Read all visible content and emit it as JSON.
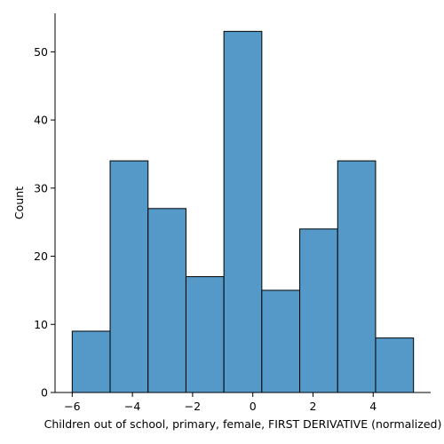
{
  "chart_data": {
    "type": "histogram",
    "bin_edges": [
      -6.0,
      -4.74,
      -3.48,
      -2.22,
      -0.96,
      0.3,
      1.56,
      2.82,
      4.08,
      5.34
    ],
    "values": [
      9,
      34,
      27,
      17,
      53,
      15,
      24,
      34,
      8
    ],
    "xlabel": "Children out of school, primary, female, FIRST DERIVATIVE (normalized)",
    "ylabel": "Count",
    "xlim": [
      -6.57,
      5.91
    ],
    "ylim": [
      0,
      55.65
    ],
    "xticks": [
      -6,
      -4,
      -2,
      0,
      2,
      4
    ],
    "xtick_labels": [
      "−6",
      "−4",
      "−2",
      "0",
      "2",
      "4"
    ],
    "yticks": [
      0,
      10,
      20,
      30,
      40,
      50
    ],
    "ytick_labels": [
      "0",
      "10",
      "20",
      "30",
      "40",
      "50"
    ],
    "bar_color": "#5599c8",
    "edge_color": "#000000",
    "grid": false
  }
}
